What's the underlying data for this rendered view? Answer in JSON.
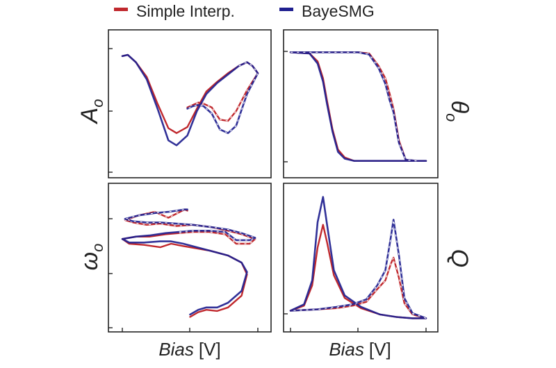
{
  "legend": {
    "entries": [
      {
        "label": "Simple Interp.",
        "color": "#c0282d"
      },
      {
        "label": "BayeSMG",
        "color": "#1f1f8f"
      }
    ]
  },
  "chart_data": [
    {
      "type": "line",
      "panel": "top-left",
      "ylabel": "A",
      "ylabel_subscript": "o",
      "xlabel": "",
      "xlim": [
        0,
        1
      ],
      "ylim": [
        0,
        1
      ],
      "series": [
        {
          "name": "Simple Interp.",
          "color": "#c0282d",
          "x": [
            0.0,
            0.04,
            0.1,
            0.18,
            0.26,
            0.34,
            0.4,
            0.48,
            0.55,
            0.62,
            0.7,
            0.78,
            0.86,
            0.92,
            0.96,
            1.0,
            0.92,
            0.84,
            0.78,
            0.72,
            0.66,
            0.6,
            0.56,
            0.52,
            0.48
          ],
          "y": [
            0.95,
            0.96,
            0.9,
            0.78,
            0.56,
            0.36,
            0.32,
            0.37,
            0.52,
            0.66,
            0.74,
            0.81,
            0.87,
            0.9,
            0.87,
            0.81,
            0.67,
            0.5,
            0.42,
            0.43,
            0.53,
            0.56,
            0.57,
            0.55,
            0.53
          ]
        },
        {
          "name": "BayeSMG",
          "color": "#1f1f8f",
          "x": [
            0.0,
            0.04,
            0.1,
            0.18,
            0.26,
            0.34,
            0.4,
            0.48,
            0.55,
            0.62,
            0.7,
            0.78,
            0.86,
            0.92,
            0.96,
            1.0,
            0.92,
            0.84,
            0.78,
            0.72,
            0.66,
            0.6,
            0.56,
            0.52,
            0.48
          ],
          "y": [
            0.95,
            0.96,
            0.9,
            0.76,
            0.52,
            0.26,
            0.22,
            0.3,
            0.5,
            0.64,
            0.73,
            0.8,
            0.87,
            0.9,
            0.87,
            0.81,
            0.64,
            0.38,
            0.32,
            0.35,
            0.48,
            0.54,
            0.55,
            0.54,
            0.52
          ]
        }
      ]
    },
    {
      "type": "line",
      "panel": "top-right",
      "ylabel": "θ",
      "ylabel_subscript": "o",
      "xlabel": "",
      "xlim": [
        0,
        1
      ],
      "ylim": [
        0,
        1
      ],
      "series": [
        {
          "name": "Simple Interp.",
          "color": "#c0282d",
          "x": [
            0.0,
            0.14,
            0.2,
            0.24,
            0.27,
            0.31,
            0.35,
            0.4,
            0.47,
            0.6,
            0.8,
            1.0,
            0.93,
            0.85,
            0.8,
            0.76,
            0.73,
            0.7,
            0.65,
            0.58,
            0.5,
            0.4,
            0.3,
            0.18,
            0.0
          ],
          "y": [
            0.98,
            0.97,
            0.9,
            0.75,
            0.55,
            0.3,
            0.12,
            0.05,
            0.02,
            0.02,
            0.02,
            0.02,
            0.02,
            0.03,
            0.2,
            0.48,
            0.62,
            0.75,
            0.86,
            0.97,
            0.98,
            0.98,
            0.98,
            0.98,
            0.98
          ]
        },
        {
          "name": "BayeSMG",
          "color": "#1f1f8f",
          "x": [
            0.0,
            0.14,
            0.2,
            0.24,
            0.27,
            0.31,
            0.35,
            0.4,
            0.47,
            0.6,
            0.8,
            1.0,
            0.93,
            0.85,
            0.8,
            0.76,
            0.73,
            0.7,
            0.65,
            0.58,
            0.5,
            0.4,
            0.3,
            0.18,
            0.0
          ],
          "y": [
            0.98,
            0.97,
            0.88,
            0.72,
            0.52,
            0.28,
            0.1,
            0.04,
            0.02,
            0.02,
            0.02,
            0.02,
            0.02,
            0.03,
            0.18,
            0.45,
            0.56,
            0.7,
            0.84,
            0.96,
            0.98,
            0.98,
            0.98,
            0.98,
            0.98
          ]
        }
      ]
    },
    {
      "type": "line",
      "panel": "bottom-left",
      "ylabel": "ω",
      "ylabel_subscript": "o",
      "xlabel": "Bias",
      "xlabel_unit": "[V]",
      "xlim": [
        0,
        1
      ],
      "ylim": [
        0,
        1
      ],
      "series": [
        {
          "name": "Simple Interp.",
          "color": "#c0282d",
          "x": [
            0.5,
            0.56,
            0.62,
            0.7,
            0.78,
            0.88,
            0.92,
            0.88,
            0.78,
            0.65,
            0.55,
            0.45,
            0.36,
            0.28,
            0.16,
            0.05,
            0.0,
            0.1,
            0.2,
            0.32,
            0.42,
            0.52,
            0.64,
            0.76,
            0.84,
            0.94,
            0.98,
            0.88,
            0.78,
            0.66,
            0.52,
            0.4,
            0.28,
            0.18,
            0.08,
            0.02,
            0.12,
            0.24,
            0.34,
            0.46,
            0.48
          ],
          "y": [
            0.08,
            0.12,
            0.14,
            0.13,
            0.16,
            0.26,
            0.44,
            0.54,
            0.6,
            0.64,
            0.66,
            0.68,
            0.7,
            0.67,
            0.69,
            0.7,
            0.74,
            0.76,
            0.76,
            0.78,
            0.79,
            0.8,
            0.8,
            0.78,
            0.7,
            0.7,
            0.74,
            0.78,
            0.81,
            0.84,
            0.86,
            0.85,
            0.87,
            0.86,
            0.88,
            0.9,
            0.94,
            0.97,
            0.92,
            0.99,
            0.98
          ]
        },
        {
          "name": "BayeSMG",
          "color": "#1f1f8f",
          "x": [
            0.5,
            0.56,
            0.62,
            0.7,
            0.78,
            0.88,
            0.92,
            0.88,
            0.78,
            0.65,
            0.55,
            0.45,
            0.36,
            0.28,
            0.16,
            0.05,
            0.0,
            0.1,
            0.2,
            0.32,
            0.42,
            0.52,
            0.64,
            0.76,
            0.84,
            0.94,
            0.98,
            0.88,
            0.78,
            0.66,
            0.52,
            0.4,
            0.28,
            0.18,
            0.08,
            0.02,
            0.12,
            0.24,
            0.34,
            0.46,
            0.48
          ],
          "y": [
            0.1,
            0.14,
            0.16,
            0.16,
            0.2,
            0.3,
            0.46,
            0.54,
            0.6,
            0.64,
            0.67,
            0.7,
            0.72,
            0.72,
            0.71,
            0.71,
            0.74,
            0.76,
            0.77,
            0.79,
            0.8,
            0.81,
            0.81,
            0.8,
            0.73,
            0.73,
            0.75,
            0.79,
            0.82,
            0.84,
            0.86,
            0.87,
            0.88,
            0.88,
            0.89,
            0.91,
            0.94,
            0.96,
            0.97,
            0.99,
            0.99
          ]
        }
      ]
    },
    {
      "type": "line",
      "panel": "bottom-right",
      "ylabel": "Q",
      "xlabel": "Bias",
      "xlabel_unit": "[V]",
      "xlim": [
        0,
        1
      ],
      "ylim": [
        0,
        1
      ],
      "series": [
        {
          "name": "Simple Interp.",
          "color": "#c0282d",
          "x": [
            0.0,
            0.1,
            0.16,
            0.2,
            0.24,
            0.27,
            0.32,
            0.4,
            0.52,
            0.66,
            0.78,
            0.9,
            1.0,
            0.9,
            0.84,
            0.8,
            0.76,
            0.74,
            0.7,
            0.64,
            0.56,
            0.46,
            0.34,
            0.2,
            0.0
          ],
          "y": [
            0.08,
            0.12,
            0.28,
            0.58,
            0.76,
            0.62,
            0.36,
            0.18,
            0.1,
            0.05,
            0.03,
            0.02,
            0.02,
            0.05,
            0.14,
            0.34,
            0.5,
            0.45,
            0.32,
            0.25,
            0.15,
            0.12,
            0.1,
            0.09,
            0.08
          ]
        },
        {
          "name": "BayeSMG",
          "color": "#1f1f8f",
          "x": [
            0.0,
            0.1,
            0.16,
            0.2,
            0.24,
            0.27,
            0.32,
            0.4,
            0.52,
            0.66,
            0.78,
            0.9,
            1.0,
            0.9,
            0.84,
            0.8,
            0.76,
            0.74,
            0.7,
            0.64,
            0.56,
            0.46,
            0.34,
            0.2,
            0.0
          ],
          "y": [
            0.08,
            0.13,
            0.32,
            0.78,
            0.98,
            0.76,
            0.4,
            0.2,
            0.11,
            0.05,
            0.03,
            0.02,
            0.02,
            0.06,
            0.18,
            0.52,
            0.8,
            0.66,
            0.4,
            0.28,
            0.17,
            0.13,
            0.11,
            0.09,
            0.08
          ]
        }
      ]
    }
  ]
}
